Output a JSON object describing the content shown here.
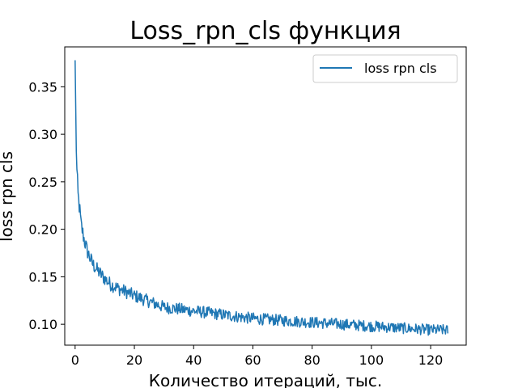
{
  "chart_data": {
    "type": "line",
    "title": "Loss_rpn_cls функция",
    "xlabel": "Количество итераций, тыс.",
    "ylabel": "loss rpn cls",
    "xlim": [
      -3.5,
      132
    ],
    "ylim": [
      0.078,
      0.392
    ],
    "xticks": [
      0,
      20,
      40,
      60,
      80,
      100,
      120
    ],
    "yticks": [
      0.1,
      0.15,
      0.2,
      0.25,
      0.3,
      0.35
    ],
    "ytick_labels": [
      "0.10",
      "0.15",
      "0.20",
      "0.25",
      "0.30",
      "0.35"
    ],
    "grid": false,
    "legend_position": "top-right",
    "series": [
      {
        "name": "loss rpn cls",
        "color": "#1f77b4",
        "x": [
          0,
          0.3,
          0.6,
          1,
          1.5,
          2,
          3,
          4,
          5,
          6,
          8,
          10,
          12,
          15,
          18,
          20,
          25,
          30,
          35,
          40,
          45,
          50,
          55,
          60,
          65,
          70,
          75,
          80,
          85,
          90,
          95,
          100,
          105,
          110,
          115,
          120,
          125,
          126
        ],
        "y": [
          0.378,
          0.3,
          0.26,
          0.235,
          0.222,
          0.205,
          0.19,
          0.178,
          0.17,
          0.163,
          0.155,
          0.148,
          0.142,
          0.137,
          0.133,
          0.13,
          0.124,
          0.118,
          0.116,
          0.114,
          0.112,
          0.11,
          0.108,
          0.106,
          0.105,
          0.104,
          0.103,
          0.102,
          0.101,
          0.1,
          0.099,
          0.098,
          0.097,
          0.096,
          0.095,
          0.094,
          0.094,
          0.093
        ]
      }
    ]
  }
}
